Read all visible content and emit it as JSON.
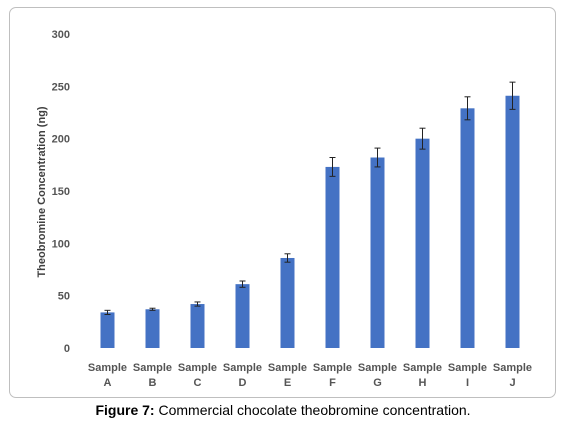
{
  "chart_data": {
    "type": "bar",
    "categories": [
      [
        "Sample",
        "A"
      ],
      [
        "Sample",
        "B"
      ],
      [
        "Sample",
        "C"
      ],
      [
        "Sample",
        "D"
      ],
      [
        "Sample",
        "E"
      ],
      [
        "Sample",
        "F"
      ],
      [
        "Sample",
        "G"
      ],
      [
        "Sample",
        "H"
      ],
      [
        "Sample",
        "I"
      ],
      [
        "Sample",
        "J"
      ]
    ],
    "values": [
      34,
      37,
      42,
      61,
      86,
      173,
      182,
      200,
      229,
      241
    ],
    "error": [
      2,
      1,
      2,
      3,
      4,
      9,
      9,
      10,
      11,
      13
    ],
    "ylabel": "Theobromine Concentration (ng)",
    "ylim": [
      0,
      300
    ],
    "yticks": [
      0,
      50,
      100,
      150,
      200,
      250,
      300
    ],
    "grid": false,
    "legend": "none",
    "bar_color": "#4472c4"
  },
  "caption": {
    "label": "Figure 7:",
    "text": " Commercial chocolate theobromine concentration."
  }
}
